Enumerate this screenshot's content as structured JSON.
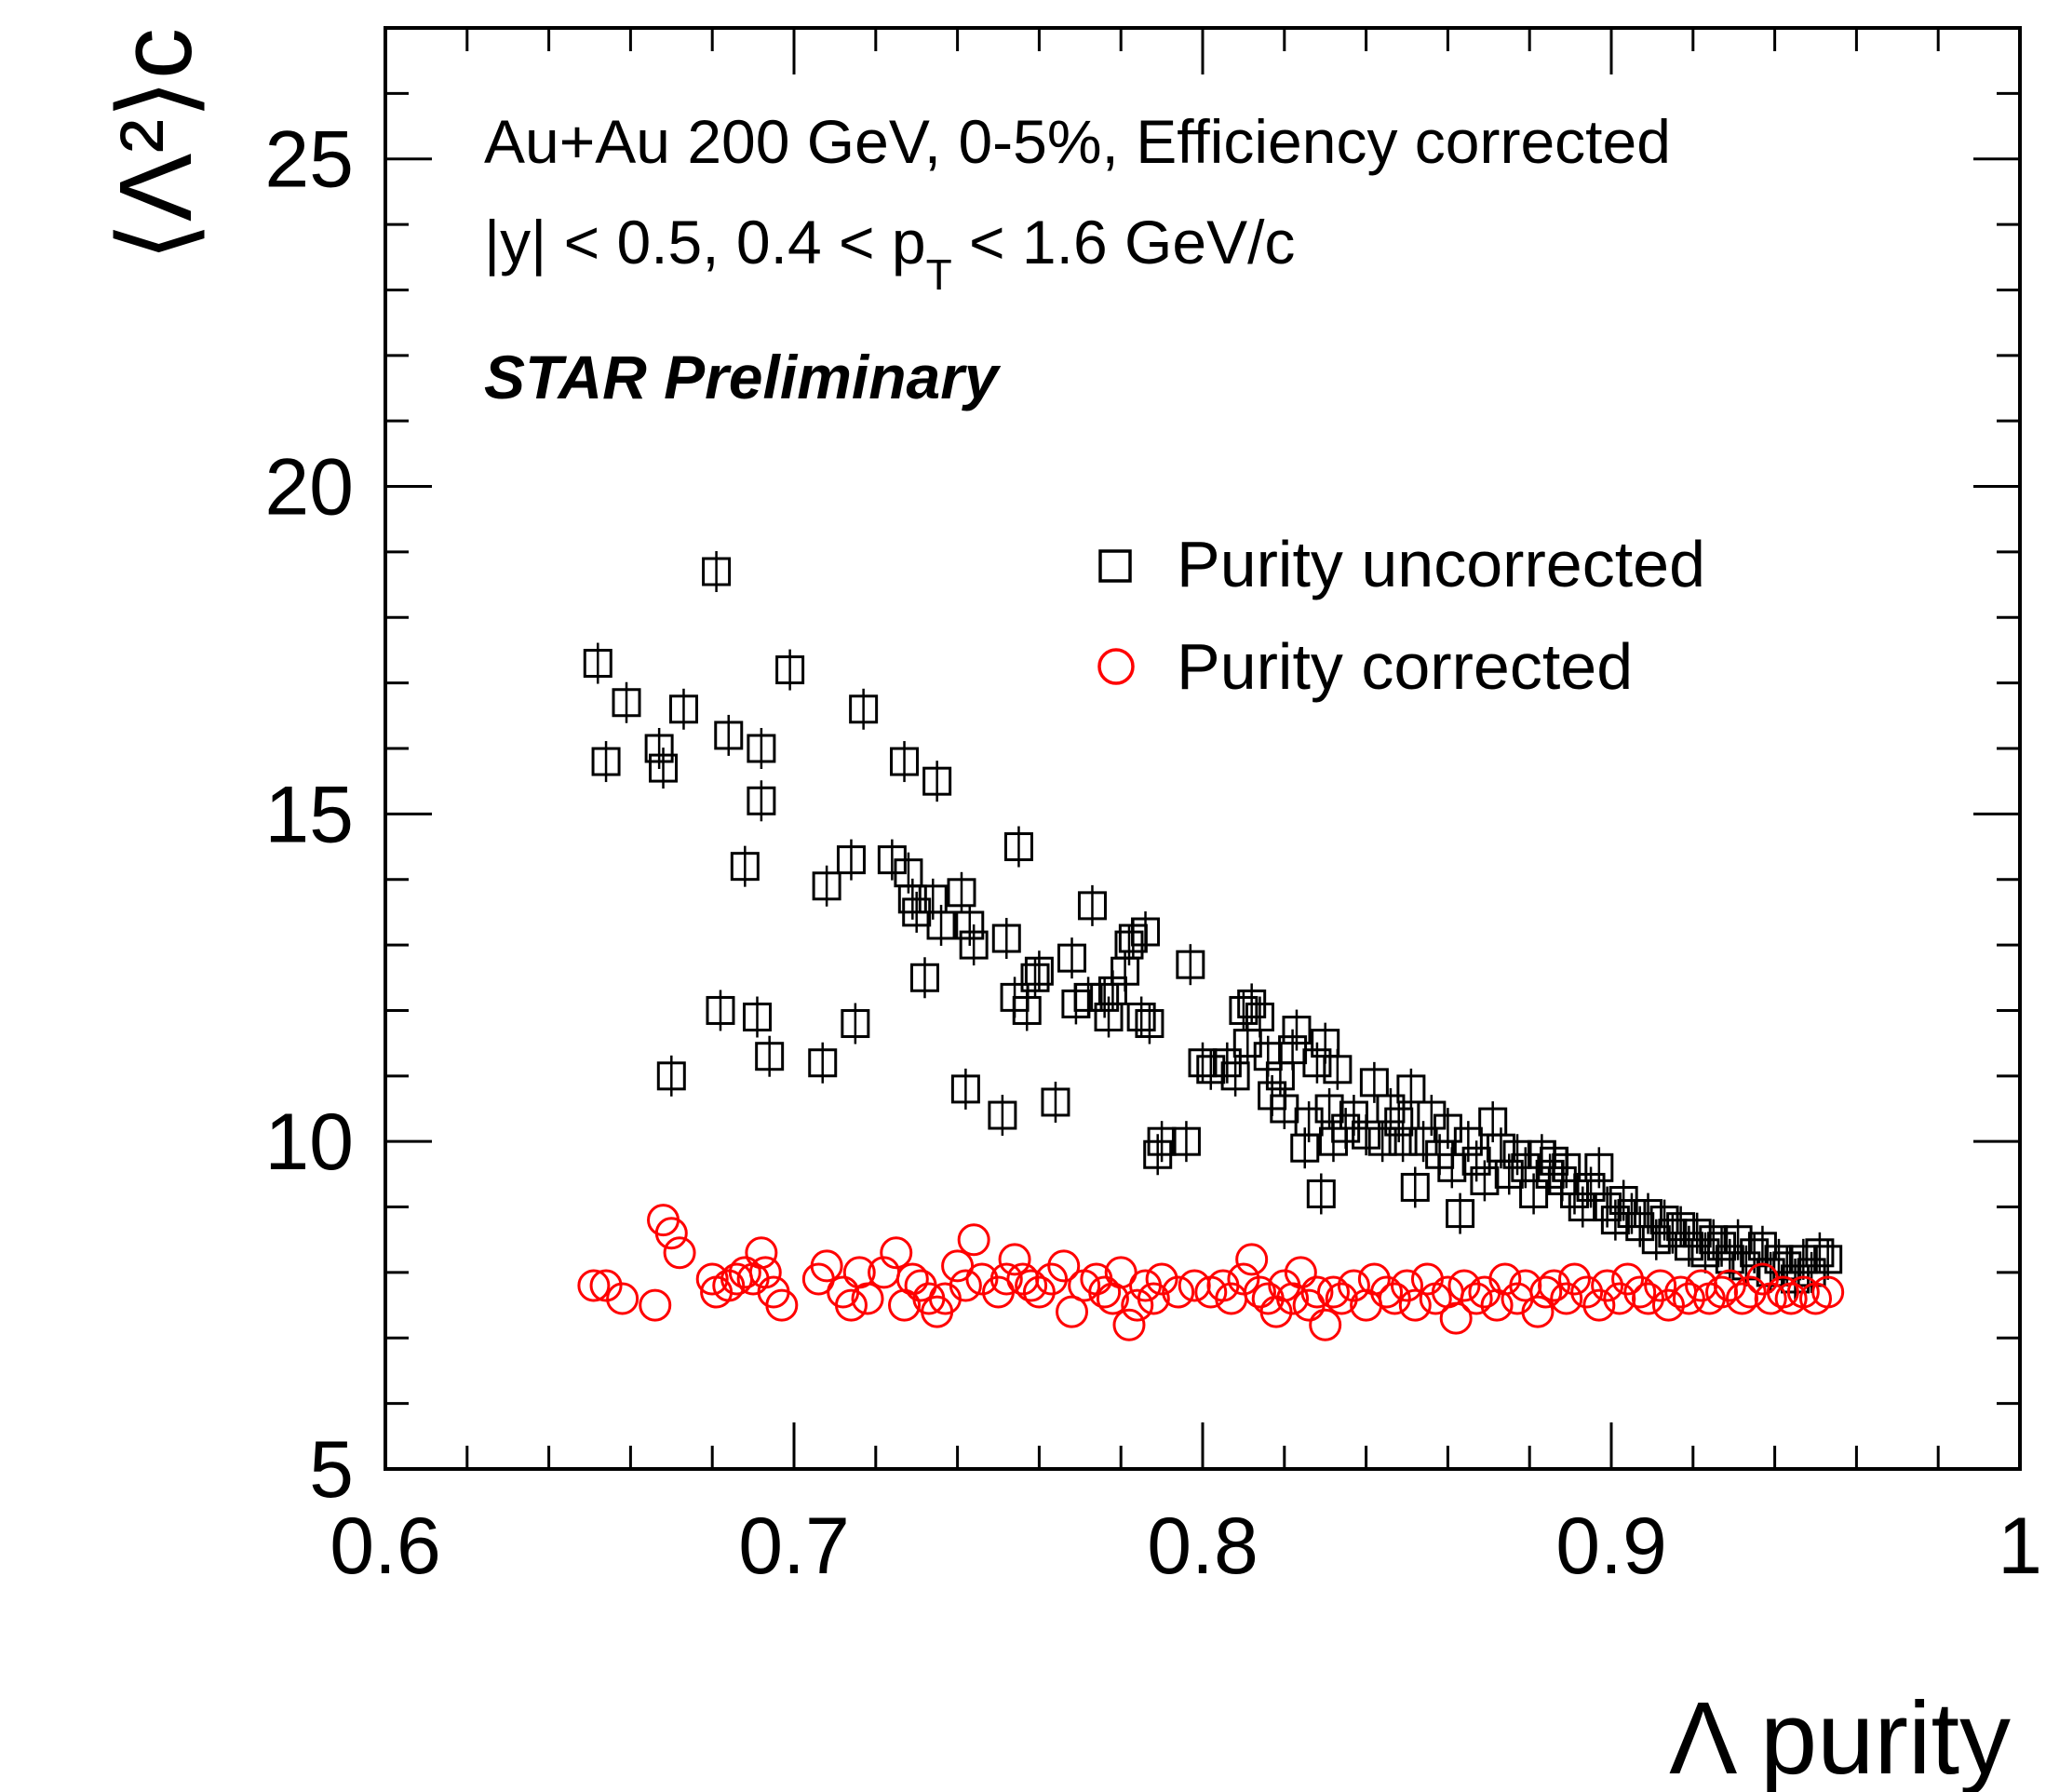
{
  "chart_data": {
    "type": "scatter",
    "title": "",
    "xlabel": "Λ purity",
    "ylabel": "⟨Λ²⟩c",
    "xlim": [
      0.6,
      1.0
    ],
    "ylim": [
      5,
      27
    ],
    "xticks": [
      "0.6",
      "0.7",
      "0.8",
      "0.9",
      "1"
    ],
    "yticks": [
      "5",
      "10",
      "15",
      "20",
      "25"
    ],
    "annotations": {
      "line1": "Au+Au 200 GeV, 0-5%, Efficiency corrected",
      "line2_a": "|y| < 0.5, 0.4 < p",
      "line2_sub": "T",
      "line2_b": " < 1.6 GeV/c",
      "preliminary": "STAR Preliminary"
    },
    "legend": [
      "Purity uncorrected",
      "Purity corrected"
    ],
    "series": [
      {
        "name": "Purity uncorrected",
        "marker": "square",
        "color": "#000000",
        "points": [
          [
            0.652,
            17.3
          ],
          [
            0.654,
            15.8
          ],
          [
            0.659,
            16.7
          ],
          [
            0.667,
            16.0
          ],
          [
            0.668,
            15.7
          ],
          [
            0.67,
            11.0
          ],
          [
            0.673,
            16.6
          ],
          [
            0.681,
            18.7
          ],
          [
            0.682,
            12.0
          ],
          [
            0.684,
            16.2
          ],
          [
            0.688,
            14.2
          ],
          [
            0.691,
            11.9
          ],
          [
            0.692,
            16.0
          ],
          [
            0.692,
            15.2
          ],
          [
            0.694,
            11.3
          ],
          [
            0.699,
            17.2
          ],
          [
            0.707,
            11.2
          ],
          [
            0.708,
            13.9
          ],
          [
            0.714,
            14.3
          ],
          [
            0.715,
            11.8
          ],
          [
            0.717,
            16.6
          ],
          [
            0.724,
            14.3
          ],
          [
            0.727,
            15.8
          ],
          [
            0.728,
            14.1
          ],
          [
            0.729,
            13.7
          ],
          [
            0.73,
            13.5
          ],
          [
            0.732,
            12.5
          ],
          [
            0.734,
            13.7
          ],
          [
            0.735,
            15.5
          ],
          [
            0.736,
            13.3
          ],
          [
            0.741,
            13.8
          ],
          [
            0.742,
            10.8
          ],
          [
            0.743,
            13.3
          ],
          [
            0.744,
            13.0
          ],
          [
            0.751,
            10.4
          ],
          [
            0.752,
            13.1
          ],
          [
            0.754,
            12.2
          ],
          [
            0.755,
            14.5
          ],
          [
            0.757,
            12.0
          ],
          [
            0.759,
            12.5
          ],
          [
            0.76,
            12.6
          ],
          [
            0.764,
            10.6
          ],
          [
            0.768,
            12.8
          ],
          [
            0.769,
            12.1
          ],
          [
            0.772,
            12.2
          ],
          [
            0.773,
            13.6
          ],
          [
            0.776,
            12.2
          ],
          [
            0.777,
            11.9
          ],
          [
            0.778,
            12.3
          ],
          [
            0.781,
            12.6
          ],
          [
            0.782,
            13.0
          ],
          [
            0.783,
            13.1
          ],
          [
            0.785,
            11.9
          ],
          [
            0.786,
            13.2
          ],
          [
            0.787,
            11.8
          ],
          [
            0.789,
            9.8
          ],
          [
            0.79,
            10.0
          ],
          [
            0.796,
            10.0
          ],
          [
            0.797,
            12.7
          ],
          [
            0.8,
            11.2
          ],
          [
            0.802,
            11.1
          ],
          [
            0.806,
            11.2
          ],
          [
            0.808,
            11.0
          ],
          [
            0.81,
            12.0
          ],
          [
            0.811,
            11.5
          ],
          [
            0.812,
            12.1
          ],
          [
            0.814,
            11.9
          ],
          [
            0.816,
            11.3
          ],
          [
            0.817,
            10.7
          ],
          [
            0.819,
            11.0
          ],
          [
            0.82,
            10.5
          ],
          [
            0.822,
            11.4
          ],
          [
            0.823,
            11.7
          ],
          [
            0.825,
            9.9
          ],
          [
            0.826,
            10.3
          ],
          [
            0.828,
            11.2
          ],
          [
            0.829,
            9.2
          ],
          [
            0.83,
            11.5
          ],
          [
            0.831,
            10.5
          ],
          [
            0.832,
            10.0
          ],
          [
            0.833,
            11.1
          ],
          [
            0.835,
            10.2
          ],
          [
            0.837,
            10.4
          ],
          [
            0.84,
            10.1
          ],
          [
            0.842,
            10.9
          ],
          [
            0.844,
            10.0
          ],
          [
            0.846,
            10.5
          ],
          [
            0.848,
            10.3
          ],
          [
            0.849,
            10.0
          ],
          [
            0.851,
            10.8
          ],
          [
            0.852,
            9.3
          ],
          [
            0.854,
            10.0
          ],
          [
            0.856,
            10.4
          ],
          [
            0.858,
            9.8
          ],
          [
            0.86,
            10.2
          ],
          [
            0.861,
            9.6
          ],
          [
            0.863,
            8.9
          ],
          [
            0.865,
            10.0
          ],
          [
            0.867,
            9.7
          ],
          [
            0.869,
            9.4
          ],
          [
            0.871,
            10.3
          ],
          [
            0.873,
            9.9
          ],
          [
            0.875,
            9.5
          ],
          [
            0.877,
            9.8
          ],
          [
            0.879,
            9.6
          ],
          [
            0.881,
            9.2
          ],
          [
            0.883,
            9.8
          ],
          [
            0.885,
            9.5
          ],
          [
            0.886,
            9.7
          ],
          [
            0.888,
            9.4
          ],
          [
            0.889,
            9.6
          ],
          [
            0.891,
            9.2
          ],
          [
            0.893,
            9.0
          ],
          [
            0.895,
            9.3
          ],
          [
            0.897,
            9.6
          ],
          [
            0.899,
            9.0
          ],
          [
            0.901,
            8.8
          ],
          [
            0.903,
            9.1
          ],
          [
            0.905,
            8.9
          ],
          [
            0.907,
            8.7
          ],
          [
            0.909,
            8.9
          ],
          [
            0.911,
            8.5
          ],
          [
            0.913,
            8.8
          ],
          [
            0.915,
            8.6
          ],
          [
            0.917,
            8.7
          ],
          [
            0.919,
            8.4
          ],
          [
            0.921,
            8.6
          ],
          [
            0.923,
            8.3
          ],
          [
            0.925,
            8.5
          ],
          [
            0.927,
            8.4
          ],
          [
            0.929,
            8.2
          ],
          [
            0.931,
            8.5
          ],
          [
            0.933,
            8.1
          ],
          [
            0.935,
            8.3
          ],
          [
            0.937,
            8.4
          ],
          [
            0.939,
            8.0
          ],
          [
            0.941,
            8.2
          ],
          [
            0.943,
            8.1
          ],
          [
            0.945,
            7.9
          ],
          [
            0.947,
            8.2
          ],
          [
            0.949,
            8.0
          ],
          [
            0.951,
            8.3
          ],
          [
            0.953,
            8.2
          ]
        ]
      },
      {
        "name": "Purity corrected",
        "marker": "circle",
        "color": "#ff0000",
        "points": [
          [
            0.651,
            7.8
          ],
          [
            0.654,
            7.8
          ],
          [
            0.658,
            7.6
          ],
          [
            0.666,
            7.5
          ],
          [
            0.668,
            8.8
          ],
          [
            0.67,
            8.6
          ],
          [
            0.672,
            8.3
          ],
          [
            0.68,
            7.9
          ],
          [
            0.681,
            7.7
          ],
          [
            0.684,
            7.8
          ],
          [
            0.686,
            7.9
          ],
          [
            0.688,
            8.0
          ],
          [
            0.69,
            7.9
          ],
          [
            0.692,
            8.3
          ],
          [
            0.693,
            8.0
          ],
          [
            0.695,
            7.7
          ],
          [
            0.697,
            7.5
          ],
          [
            0.706,
            7.9
          ],
          [
            0.708,
            8.1
          ],
          [
            0.712,
            7.7
          ],
          [
            0.714,
            7.5
          ],
          [
            0.716,
            8.0
          ],
          [
            0.718,
            7.6
          ],
          [
            0.722,
            8.0
          ],
          [
            0.725,
            8.3
          ],
          [
            0.727,
            7.5
          ],
          [
            0.729,
            7.9
          ],
          [
            0.731,
            7.8
          ],
          [
            0.733,
            7.6
          ],
          [
            0.735,
            7.4
          ],
          [
            0.737,
            7.6
          ],
          [
            0.74,
            8.1
          ],
          [
            0.742,
            7.8
          ],
          [
            0.744,
            8.5
          ],
          [
            0.746,
            7.9
          ],
          [
            0.75,
            7.7
          ],
          [
            0.752,
            7.9
          ],
          [
            0.754,
            8.2
          ],
          [
            0.756,
            7.9
          ],
          [
            0.758,
            7.8
          ],
          [
            0.76,
            7.7
          ],
          [
            0.763,
            7.9
          ],
          [
            0.766,
            8.1
          ],
          [
            0.768,
            7.4
          ],
          [
            0.771,
            7.8
          ],
          [
            0.774,
            7.9
          ],
          [
            0.776,
            7.7
          ],
          [
            0.778,
            7.6
          ],
          [
            0.78,
            8.0
          ],
          [
            0.782,
            7.2
          ],
          [
            0.784,
            7.5
          ],
          [
            0.786,
            7.8
          ],
          [
            0.788,
            7.6
          ],
          [
            0.79,
            7.9
          ],
          [
            0.794,
            7.7
          ],
          [
            0.798,
            7.8
          ],
          [
            0.802,
            7.7
          ],
          [
            0.805,
            7.8
          ],
          [
            0.807,
            7.6
          ],
          [
            0.81,
            7.9
          ],
          [
            0.812,
            8.2
          ],
          [
            0.814,
            7.7
          ],
          [
            0.816,
            7.6
          ],
          [
            0.818,
            7.4
          ],
          [
            0.82,
            7.8
          ],
          [
            0.822,
            7.6
          ],
          [
            0.824,
            8.0
          ],
          [
            0.826,
            7.5
          ],
          [
            0.828,
            7.7
          ],
          [
            0.83,
            7.2
          ],
          [
            0.832,
            7.7
          ],
          [
            0.834,
            7.6
          ],
          [
            0.837,
            7.8
          ],
          [
            0.84,
            7.5
          ],
          [
            0.842,
            7.9
          ],
          [
            0.845,
            7.7
          ],
          [
            0.847,
            7.6
          ],
          [
            0.85,
            7.8
          ],
          [
            0.852,
            7.5
          ],
          [
            0.855,
            7.9
          ],
          [
            0.857,
            7.6
          ],
          [
            0.86,
            7.7
          ],
          [
            0.862,
            7.3
          ],
          [
            0.864,
            7.8
          ],
          [
            0.867,
            7.6
          ],
          [
            0.869,
            7.7
          ],
          [
            0.872,
            7.5
          ],
          [
            0.874,
            7.9
          ],
          [
            0.877,
            7.6
          ],
          [
            0.879,
            7.8
          ],
          [
            0.882,
            7.4
          ],
          [
            0.884,
            7.7
          ],
          [
            0.886,
            7.8
          ],
          [
            0.889,
            7.6
          ],
          [
            0.891,
            7.9
          ],
          [
            0.894,
            7.7
          ],
          [
            0.897,
            7.5
          ],
          [
            0.899,
            7.8
          ],
          [
            0.902,
            7.6
          ],
          [
            0.904,
            7.9
          ],
          [
            0.907,
            7.7
          ],
          [
            0.909,
            7.6
          ],
          [
            0.912,
            7.8
          ],
          [
            0.914,
            7.5
          ],
          [
            0.917,
            7.7
          ],
          [
            0.919,
            7.6
          ],
          [
            0.922,
            7.8
          ],
          [
            0.924,
            7.6
          ],
          [
            0.927,
            7.7
          ],
          [
            0.929,
            7.8
          ],
          [
            0.932,
            7.6
          ],
          [
            0.934,
            7.7
          ],
          [
            0.937,
            7.9
          ],
          [
            0.939,
            7.6
          ],
          [
            0.942,
            7.7
          ],
          [
            0.944,
            7.6
          ],
          [
            0.947,
            7.7
          ],
          [
            0.95,
            7.6
          ],
          [
            0.953,
            7.7
          ]
        ]
      }
    ]
  }
}
